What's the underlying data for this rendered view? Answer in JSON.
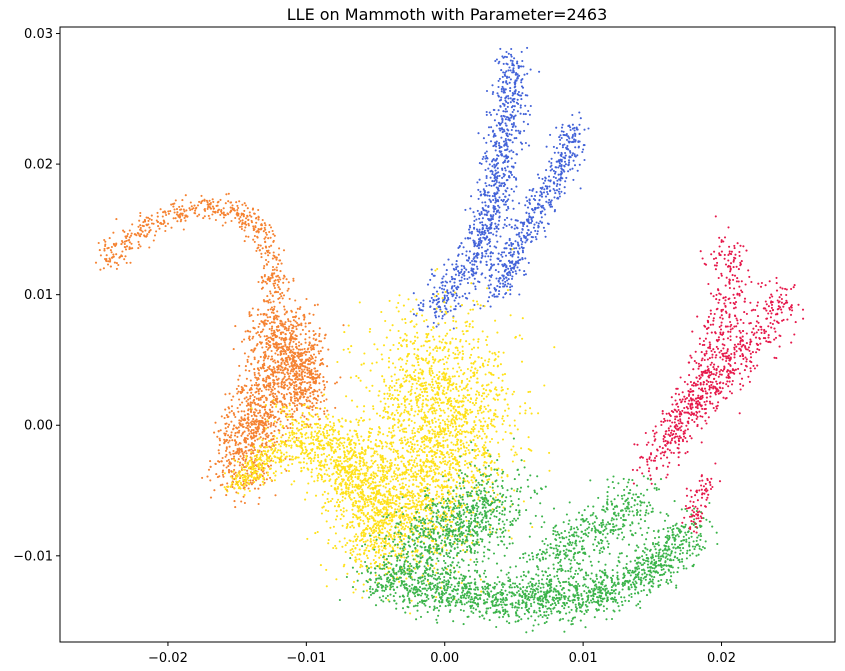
{
  "chart_data": {
    "type": "scatter",
    "title": "LLE on Mammoth with Parameter=2463",
    "xlabel": "",
    "ylabel": "",
    "xlim": [
      -0.0278,
      0.0282
    ],
    "ylim": [
      -0.0166,
      0.0305
    ],
    "grid": false,
    "legend": "none",
    "x_ticks": [
      {
        "value": -0.02,
        "label": "−0.02"
      },
      {
        "value": -0.01,
        "label": "−0.01"
      },
      {
        "value": 0.0,
        "label": "0.00"
      },
      {
        "value": 0.01,
        "label": "0.01"
      },
      {
        "value": 0.02,
        "label": "0.02"
      }
    ],
    "y_ticks": [
      {
        "value": -0.01,
        "label": "−0.01"
      },
      {
        "value": 0.0,
        "label": "0.00"
      },
      {
        "value": 0.01,
        "label": "0.01"
      },
      {
        "value": 0.02,
        "label": "0.02"
      },
      {
        "value": 0.03,
        "label": "0.03"
      }
    ],
    "clusters": [
      {
        "color": "#4363d8",
        "count": 900,
        "spread": 0.0008,
        "path": [
          [
            -0.0008,
            0.0088
          ],
          [
            0.0015,
            0.0118
          ],
          [
            0.003,
            0.015
          ],
          [
            0.004,
            0.019
          ],
          [
            0.0045,
            0.023
          ],
          [
            0.005,
            0.0262
          ],
          [
            0.0048,
            0.028
          ]
        ]
      },
      {
        "color": "#4363d8",
        "count": 550,
        "spread": 0.0007,
        "path": [
          [
            0.0035,
            0.01
          ],
          [
            0.0055,
            0.014
          ],
          [
            0.0075,
            0.018
          ],
          [
            0.009,
            0.021
          ],
          [
            0.0092,
            0.023
          ]
        ]
      },
      {
        "color": "#f58231",
        "count": 520,
        "spread": 0.0006,
        "path": [
          [
            -0.0245,
            0.0125
          ],
          [
            -0.023,
            0.014
          ],
          [
            -0.0205,
            0.0158
          ],
          [
            -0.0175,
            0.0168
          ],
          [
            -0.015,
            0.0165
          ],
          [
            -0.0132,
            0.015
          ],
          [
            -0.0125,
            0.0125
          ],
          [
            -0.0122,
            0.01
          ]
        ]
      },
      {
        "color": "#f58231",
        "count": 1300,
        "spread": 0.0014,
        "path": [
          [
            -0.012,
            0.009
          ],
          [
            -0.0115,
            0.005
          ],
          [
            -0.013,
            0.002
          ],
          [
            -0.014,
            -0.001
          ],
          [
            -0.015,
            -0.004
          ]
        ]
      },
      {
        "color": "#f58231",
        "count": 350,
        "spread": 0.0011,
        "path": [
          [
            -0.0108,
            0.006
          ],
          [
            -0.0098,
            0.0035
          ],
          [
            -0.0105,
            0.0012
          ]
        ]
      },
      {
        "color": "#ffe119",
        "count": 2300,
        "spread": 0.0032,
        "path": [
          [
            -0.001,
            0.0055
          ],
          [
            0.0,
            0.002
          ],
          [
            -0.001,
            -0.003
          ],
          [
            -0.003,
            -0.008
          ]
        ]
      },
      {
        "color": "#ffe119",
        "count": 1200,
        "spread": 0.0016,
        "path": [
          [
            -0.011,
            -0.0005
          ],
          [
            -0.0085,
            -0.002
          ],
          [
            -0.006,
            -0.004
          ],
          [
            -0.0045,
            -0.007
          ],
          [
            -0.005,
            -0.01
          ]
        ]
      },
      {
        "color": "#ffe119",
        "count": 220,
        "spread": 0.0007,
        "path": [
          [
            -0.015,
            -0.0045
          ],
          [
            -0.0138,
            -0.0035
          ],
          [
            -0.0122,
            -0.002
          ]
        ]
      },
      {
        "color": "#3cb44b",
        "count": 1700,
        "spread": 0.0011,
        "path": [
          [
            -0.005,
            -0.0115
          ],
          [
            -0.002,
            -0.0125
          ],
          [
            0.002,
            -0.013
          ],
          [
            0.006,
            -0.0135
          ],
          [
            0.01,
            -0.013
          ],
          [
            0.014,
            -0.0118
          ],
          [
            0.017,
            -0.009
          ],
          [
            0.0178,
            -0.0075
          ]
        ]
      },
      {
        "color": "#3cb44b",
        "count": 850,
        "spread": 0.0018,
        "path": [
          [
            -0.003,
            -0.01
          ],
          [
            0.0005,
            -0.0085
          ],
          [
            0.003,
            -0.0065
          ],
          [
            0.004,
            -0.005
          ]
        ]
      },
      {
        "color": "#3cb44b",
        "count": 450,
        "spread": 0.0013,
        "path": [
          [
            0.007,
            -0.011
          ],
          [
            0.01,
            -0.0085
          ],
          [
            0.0125,
            -0.0075
          ],
          [
            0.014,
            -0.005
          ]
        ]
      },
      {
        "color": "#e6194b",
        "count": 500,
        "spread": 0.0009,
        "path": [
          [
            0.0145,
            -0.0035
          ],
          [
            0.0165,
            -0.001
          ],
          [
            0.0185,
            0.003
          ],
          [
            0.02,
            0.0075
          ],
          [
            0.0208,
            0.0115
          ],
          [
            0.0205,
            0.014
          ]
        ]
      },
      {
        "color": "#e6194b",
        "count": 420,
        "spread": 0.0009,
        "path": [
          [
            0.0165,
            0.0
          ],
          [
            0.0195,
            0.003
          ],
          [
            0.0225,
            0.0065
          ],
          [
            0.024,
            0.0085
          ],
          [
            0.0242,
            0.0105
          ]
        ]
      },
      {
        "color": "#e6194b",
        "count": 80,
        "spread": 0.0005,
        "path": [
          [
            0.0178,
            -0.0078
          ],
          [
            0.0183,
            -0.006
          ],
          [
            0.019,
            -0.004
          ]
        ]
      }
    ]
  }
}
